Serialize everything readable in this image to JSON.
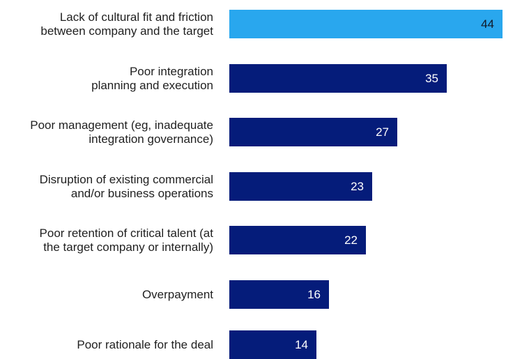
{
  "chart_data": {
    "type": "bar",
    "orientation": "horizontal",
    "categories": [
      "Lack of cultural fit and friction\nbetween company and the target",
      "Poor integration\nplanning and execution",
      "Poor management (eg, inadequate\nintegration governance)",
      "Disruption of existing commercial\nand/or business operations",
      "Poor retention of critical talent (at\nthe target company or internally)",
      "Overpayment",
      "Poor rationale for the deal"
    ],
    "values": [
      44,
      35,
      27,
      23,
      22,
      16,
      14
    ],
    "highlight_index": 0,
    "colors": {
      "highlight": "#29A7EE",
      "bar": "#051C7A",
      "label_text": "#1F1F1F",
      "value_text_on_bar": "#FFFFFF",
      "value_text_on_highlight": "#111827"
    },
    "xlim": [
      0,
      44
    ],
    "grid": false,
    "legend": "none"
  }
}
